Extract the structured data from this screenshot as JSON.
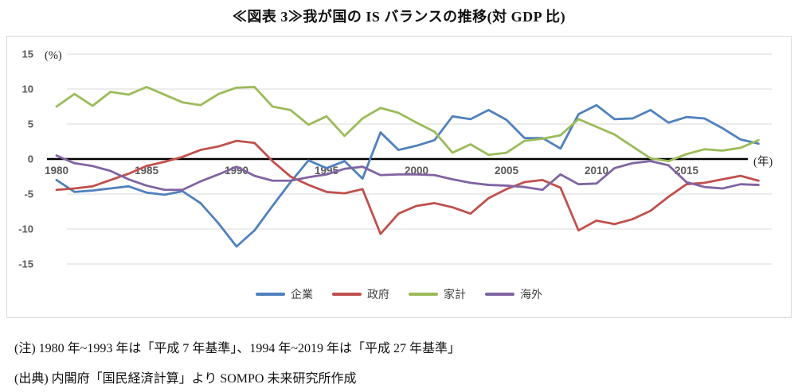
{
  "title": "≪図表 3≫我が国の IS バランスの推移(対 GDP 比)",
  "notes": [
    "(注) 1980 年~1993 年は「平成 7 年基準」、1994 年~2019 年は「平成 27 年基準」",
    "(出典) 内閣府「国民経済計算」より SOMPO 未来研究所作成"
  ],
  "chart_data": {
    "type": "line",
    "title": "≪図表 3≫我が国の IS バランスの推移(対 GDP 比)",
    "y_unit_label": "(%)",
    "x_unit_label": "(年)",
    "ylim": [
      -15,
      15
    ],
    "yticks": [
      15,
      10,
      5,
      0,
      -5,
      -10,
      -15
    ],
    "xticks": [
      1980,
      1985,
      1990,
      1995,
      2000,
      2005,
      2010,
      2015
    ],
    "grid": "horizontal-only",
    "zero_axis": "bold-black",
    "legend_position": "bottom-center",
    "years": [
      1980,
      1981,
      1982,
      1983,
      1984,
      1985,
      1986,
      1987,
      1988,
      1989,
      1990,
      1991,
      1992,
      1993,
      1994,
      1995,
      1996,
      1997,
      1998,
      1999,
      2000,
      2001,
      2002,
      2003,
      2004,
      2005,
      2006,
      2007,
      2008,
      2009,
      2010,
      2011,
      2012,
      2013,
      2014,
      2015,
      2016,
      2017,
      2018,
      2019
    ],
    "series": [
      {
        "key": "corporate",
        "label": "企業",
        "color": "#4F81BD",
        "values": [
          -3.0,
          -4.7,
          -4.5,
          -4.2,
          -3.9,
          -4.8,
          -5.1,
          -4.6,
          -6.3,
          -9.2,
          -12.5,
          -10.2,
          -6.7,
          -3.3,
          -0.2,
          -1.3,
          -0.3,
          -2.8,
          3.8,
          1.3,
          1.9,
          2.7,
          6.1,
          5.7,
          7.0,
          5.6,
          3.0,
          3.0,
          1.5,
          6.4,
          7.7,
          5.7,
          5.8,
          7.0,
          5.2,
          6.0,
          5.8,
          4.4,
          2.8,
          2.2
        ]
      },
      {
        "key": "government",
        "label": "政府",
        "color": "#C0504D",
        "values": [
          -4.4,
          -4.2,
          -3.9,
          -3.0,
          -2.1,
          -1.0,
          -0.4,
          0.3,
          1.3,
          1.8,
          2.6,
          2.3,
          -0.3,
          -2.5,
          -3.7,
          -4.7,
          -4.9,
          -4.3,
          -10.7,
          -7.8,
          -6.7,
          -6.3,
          -6.9,
          -7.8,
          -5.6,
          -4.3,
          -3.3,
          -3.0,
          -4.1,
          -10.2,
          -8.8,
          -9.3,
          -8.6,
          -7.4,
          -5.4,
          -3.6,
          -3.4,
          -2.9,
          -2.4,
          -3.1
        ]
      },
      {
        "key": "household",
        "label": "家計",
        "color": "#9BBB59",
        "values": [
          7.5,
          9.3,
          7.6,
          9.6,
          9.2,
          10.3,
          9.2,
          8.1,
          7.7,
          9.3,
          10.2,
          10.3,
          7.5,
          7.0,
          4.9,
          6.1,
          3.3,
          5.8,
          7.3,
          6.6,
          5.2,
          3.9,
          0.9,
          2.1,
          0.6,
          0.9,
          2.6,
          2.9,
          3.4,
          5.7,
          4.6,
          3.5,
          1.8,
          0.1,
          -0.3,
          0.7,
          1.4,
          1.2,
          1.6,
          2.7
        ]
      },
      {
        "key": "overseas",
        "label": "海外",
        "color": "#8064A2",
        "values": [
          0.5,
          -0.6,
          -1.0,
          -1.7,
          -2.9,
          -3.8,
          -4.4,
          -4.4,
          -3.2,
          -2.2,
          -1.1,
          -2.4,
          -3.1,
          -3.1,
          -2.6,
          -2.2,
          -1.4,
          -1.1,
          -2.3,
          -2.2,
          -2.2,
          -2.3,
          -2.9,
          -3.4,
          -3.7,
          -3.8,
          -4.0,
          -4.4,
          -2.2,
          -3.6,
          -3.5,
          -1.3,
          -0.6,
          -0.3,
          -0.9,
          -3.3,
          -4.0,
          -4.2,
          -3.6,
          -3.7
        ]
      }
    ]
  }
}
